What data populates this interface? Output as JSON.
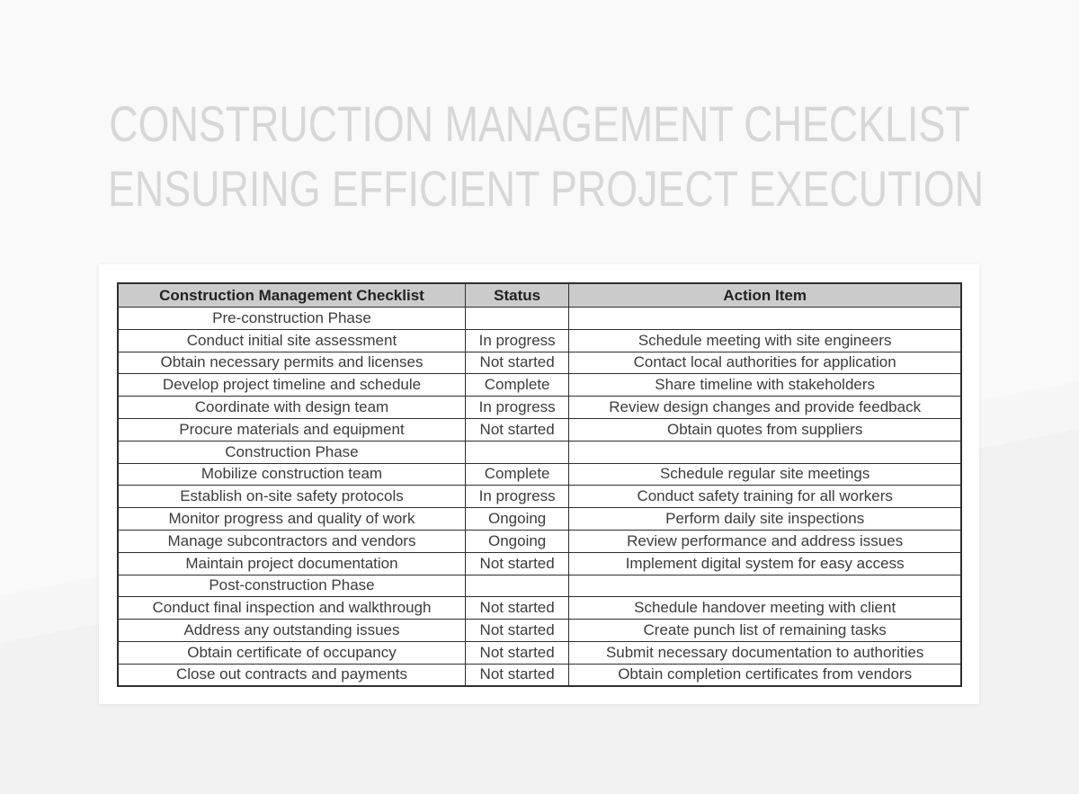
{
  "title": {
    "line1": "CONSTRUCTION MANAGEMENT CHECKLIST",
    "line2": "ENSURING EFFICIENT PROJECT EXECUTION"
  },
  "colors": {
    "background_top": "#f9f9f9",
    "background_bottom": "#f1f2f1",
    "title_text": "#d7d7d7",
    "card_background": "#ffffff",
    "header_background": "#cbcbcb",
    "table_border": "#2e2e2e",
    "body_text": "#3c3c3c"
  },
  "table": {
    "headers": [
      "Construction Management Checklist",
      "Status",
      "Action Item"
    ],
    "rows": [
      {
        "task": "Pre-construction Phase",
        "status": "",
        "action": ""
      },
      {
        "task": "Conduct initial site assessment",
        "status": "In progress",
        "action": "Schedule meeting with site engineers"
      },
      {
        "task": "Obtain necessary permits and licenses",
        "status": "Not started",
        "action": "Contact local authorities for application"
      },
      {
        "task": "Develop project timeline and schedule",
        "status": "Complete",
        "action": "Share timeline with stakeholders"
      },
      {
        "task": "Coordinate with design team",
        "status": "In progress",
        "action": "Review design changes and provide feedback"
      },
      {
        "task": "Procure materials and equipment",
        "status": "Not started",
        "action": "Obtain quotes from suppliers"
      },
      {
        "task": "Construction Phase",
        "status": "",
        "action": ""
      },
      {
        "task": "Mobilize construction team",
        "status": "Complete",
        "action": "Schedule regular site meetings"
      },
      {
        "task": "Establish on-site safety protocols",
        "status": "In progress",
        "action": "Conduct safety training for all workers"
      },
      {
        "task": "Monitor progress and quality of work",
        "status": "Ongoing",
        "action": "Perform daily site inspections"
      },
      {
        "task": "Manage subcontractors and vendors",
        "status": "Ongoing",
        "action": "Review performance and address issues"
      },
      {
        "task": "Maintain project documentation",
        "status": "Not started",
        "action": "Implement digital system for easy access"
      },
      {
        "task": "Post-construction Phase",
        "status": "",
        "action": ""
      },
      {
        "task": "Conduct final inspection and walkthrough",
        "status": "Not started",
        "action": "Schedule handover meeting with client"
      },
      {
        "task": "Address any outstanding issues",
        "status": "Not started",
        "action": "Create punch list of remaining tasks"
      },
      {
        "task": "Obtain certificate of occupancy",
        "status": "Not started",
        "action": "Submit necessary documentation to authorities"
      },
      {
        "task": "Close out contracts and payments",
        "status": "Not started",
        "action": "Obtain completion certificates from vendors"
      }
    ]
  }
}
